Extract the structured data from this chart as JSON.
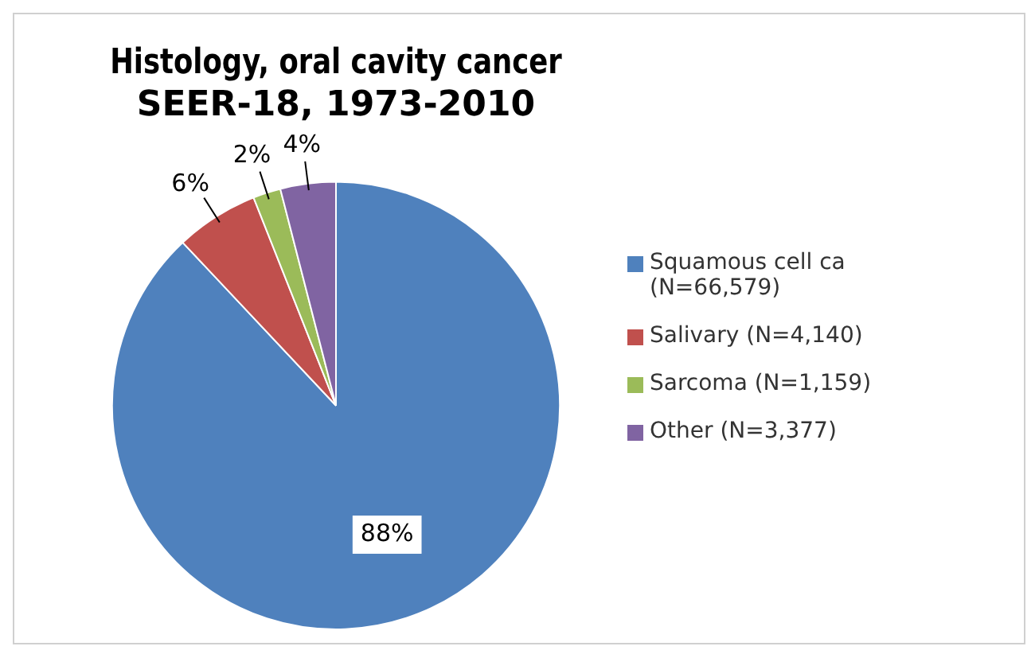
{
  "chart_data": {
    "type": "pie",
    "title": [
      "Histology, oral cavity cancer",
      "SEER-18, 1973-2010"
    ],
    "categories": [
      "Squamous cell ca (N=66,579)",
      "Salivary (N=4,140)",
      "Sarcoma (N=1,159)",
      "Other (N=3,377)"
    ],
    "values": [
      88,
      6,
      2,
      4
    ],
    "colors": [
      "#4f81bd",
      "#c0504d",
      "#9bbb59",
      "#8064a2"
    ],
    "value_labels": [
      "88%",
      "6%",
      "2%",
      "4%"
    ],
    "legend": "right"
  }
}
